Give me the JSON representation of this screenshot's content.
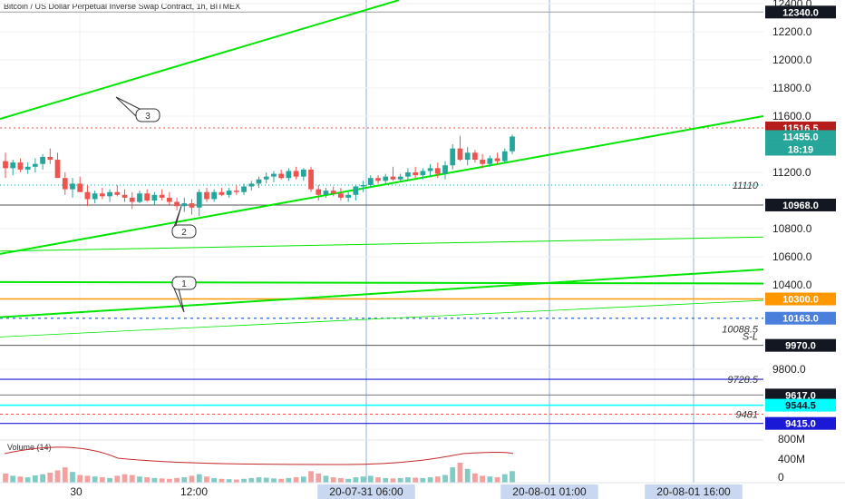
{
  "header": {
    "symbol_title": "Bitcoin / US Dollar Perpetual Inverse Swap Contract, 1h, BITMEX"
  },
  "volume_panel": {
    "title": "Volume (14)"
  },
  "colors": {
    "up": "#26a69a",
    "down": "#ef5350",
    "trendline": "#00e600",
    "orange": "#ff9800",
    "blue": "#1a1ad6",
    "cyan": "#00ffff",
    "price_tag": "#b71c1c",
    "last_tag": "#26a69a",
    "blue_tag": "#4a7fdc"
  },
  "chart_data": {
    "type": "candlestick",
    "y_axis": {
      "ticks": [
        "12400.0",
        "12200.0",
        "12000.0",
        "11800.0",
        "11600.0",
        "11200.0",
        "10800.0",
        "10600.0",
        "10400.0",
        "9800.0",
        "0",
        "400M",
        "800M"
      ],
      "min": 9300,
      "max": 12420
    },
    "x_axis": {
      "ticks": [
        "30",
        "12:00",
        "20-07-31  06:00",
        "20-08-01  01:00",
        "20-08-01  16:00"
      ]
    },
    "price_labels": [
      {
        "label": "12340.0",
        "price": 12340,
        "style": "dark"
      },
      {
        "label": "11516.5",
        "price": 11516.5,
        "style": "red"
      },
      {
        "label": "11455.0",
        "price": 11455,
        "style": "teal"
      },
      {
        "label": "18:19",
        "price": 11400,
        "style": "teal"
      },
      {
        "label": "11110",
        "price": 11110,
        "style": "plain"
      },
      {
        "label": "10968.0",
        "price": 10968,
        "style": "dark"
      },
      {
        "label": "10300.0",
        "price": 10300,
        "style": "orange"
      },
      {
        "label": "10163.0",
        "price": 10163,
        "style": "blue"
      },
      {
        "label": "10088.5",
        "price": 10088.5,
        "style": "plain"
      },
      {
        "label": "S-L",
        "price": 10050,
        "style": "plain"
      },
      {
        "label": "9970.0",
        "price": 9970,
        "style": "dark"
      },
      {
        "label": "9728.5",
        "price": 9728.5,
        "style": "plain"
      },
      {
        "label": "9617.0",
        "price": 9617,
        "style": "dark"
      },
      {
        "label": "9544.5",
        "price": 9544.5,
        "style": "cyan"
      },
      {
        "label": "9481",
        "price": 9481,
        "style": "plain"
      },
      {
        "label": "9415.0",
        "price": 9415,
        "style": "blue_dark"
      }
    ],
    "callouts": [
      "3",
      "2",
      "1"
    ],
    "candles": [
      {
        "o": 11280,
        "h": 11340,
        "l": 11160,
        "c": 11230
      },
      {
        "o": 11230,
        "h": 11290,
        "l": 11180,
        "c": 11270
      },
      {
        "o": 11270,
        "h": 11300,
        "l": 11200,
        "c": 11220
      },
      {
        "o": 11220,
        "h": 11270,
        "l": 11190,
        "c": 11240
      },
      {
        "o": 11240,
        "h": 11300,
        "l": 11200,
        "c": 11260
      },
      {
        "o": 11260,
        "h": 11330,
        "l": 11220,
        "c": 11310
      },
      {
        "o": 11310,
        "h": 11370,
        "l": 11260,
        "c": 11290
      },
      {
        "o": 11290,
        "h": 11340,
        "l": 11180,
        "c": 11160
      },
      {
        "o": 11160,
        "h": 11200,
        "l": 11040,
        "c": 11080
      },
      {
        "o": 11080,
        "h": 11160,
        "l": 11020,
        "c": 11120
      },
      {
        "o": 11120,
        "h": 11170,
        "l": 11060,
        "c": 11060
      },
      {
        "o": 11060,
        "h": 11110,
        "l": 10960,
        "c": 11010
      },
      {
        "o": 11010,
        "h": 11070,
        "l": 10980,
        "c": 11050
      },
      {
        "o": 11050,
        "h": 11090,
        "l": 11010,
        "c": 11030
      },
      {
        "o": 11030,
        "h": 11080,
        "l": 10990,
        "c": 11060
      },
      {
        "o": 11060,
        "h": 11110,
        "l": 11030,
        "c": 11040
      },
      {
        "o": 11040,
        "h": 11080,
        "l": 10990,
        "c": 11020
      },
      {
        "o": 11020,
        "h": 11060,
        "l": 10940,
        "c": 10990
      },
      {
        "o": 10990,
        "h": 11070,
        "l": 10980,
        "c": 11050
      },
      {
        "o": 11050,
        "h": 11080,
        "l": 10990,
        "c": 11000
      },
      {
        "o": 11000,
        "h": 11060,
        "l": 10970,
        "c": 11040
      },
      {
        "o": 11040,
        "h": 11080,
        "l": 11000,
        "c": 11020
      },
      {
        "o": 11020,
        "h": 11060,
        "l": 10970,
        "c": 10990
      },
      {
        "o": 10990,
        "h": 11020,
        "l": 10930,
        "c": 10960
      },
      {
        "o": 10960,
        "h": 11020,
        "l": 10920,
        "c": 10980
      },
      {
        "o": 10980,
        "h": 11010,
        "l": 10900,
        "c": 10950
      },
      {
        "o": 10950,
        "h": 11080,
        "l": 10890,
        "c": 11060
      },
      {
        "o": 11060,
        "h": 11090,
        "l": 10990,
        "c": 11010
      },
      {
        "o": 11010,
        "h": 11080,
        "l": 10990,
        "c": 11060
      },
      {
        "o": 11060,
        "h": 11090,
        "l": 11030,
        "c": 11040
      },
      {
        "o": 11040,
        "h": 11090,
        "l": 11020,
        "c": 11070
      },
      {
        "o": 11070,
        "h": 11110,
        "l": 11040,
        "c": 11060
      },
      {
        "o": 11060,
        "h": 11120,
        "l": 11040,
        "c": 11100
      },
      {
        "o": 11100,
        "h": 11140,
        "l": 11070,
        "c": 11120
      },
      {
        "o": 11120,
        "h": 11170,
        "l": 11090,
        "c": 11150
      },
      {
        "o": 11150,
        "h": 11200,
        "l": 11120,
        "c": 11170
      },
      {
        "o": 11170,
        "h": 11210,
        "l": 11130,
        "c": 11190
      },
      {
        "o": 11190,
        "h": 11220,
        "l": 11150,
        "c": 11160
      },
      {
        "o": 11160,
        "h": 11230,
        "l": 11140,
        "c": 11210
      },
      {
        "o": 11210,
        "h": 11240,
        "l": 11150,
        "c": 11170
      },
      {
        "o": 11170,
        "h": 11230,
        "l": 11140,
        "c": 11220
      },
      {
        "o": 11220,
        "h": 11240,
        "l": 11060,
        "c": 11080
      },
      {
        "o": 11080,
        "h": 11110,
        "l": 11000,
        "c": 11040
      },
      {
        "o": 11040,
        "h": 11090,
        "l": 11020,
        "c": 11070
      },
      {
        "o": 11070,
        "h": 11100,
        "l": 11030,
        "c": 11050
      },
      {
        "o": 11050,
        "h": 11090,
        "l": 11000,
        "c": 11020
      },
      {
        "o": 11020,
        "h": 11060,
        "l": 10990,
        "c": 11040
      },
      {
        "o": 11040,
        "h": 11110,
        "l": 11000,
        "c": 11100
      },
      {
        "o": 11100,
        "h": 11140,
        "l": 11060,
        "c": 11110
      },
      {
        "o": 11110,
        "h": 11180,
        "l": 11090,
        "c": 11160
      },
      {
        "o": 11160,
        "h": 11180,
        "l": 11120,
        "c": 11140
      },
      {
        "o": 11140,
        "h": 11190,
        "l": 11120,
        "c": 11170
      },
      {
        "o": 11170,
        "h": 11240,
        "l": 11140,
        "c": 11150
      },
      {
        "o": 11150,
        "h": 11190,
        "l": 11130,
        "c": 11170
      },
      {
        "o": 11170,
        "h": 11230,
        "l": 11140,
        "c": 11200
      },
      {
        "o": 11200,
        "h": 11240,
        "l": 11160,
        "c": 11180
      },
      {
        "o": 11180,
        "h": 11230,
        "l": 11150,
        "c": 11210
      },
      {
        "o": 11210,
        "h": 11260,
        "l": 11170,
        "c": 11230
      },
      {
        "o": 11230,
        "h": 11270,
        "l": 11160,
        "c": 11190
      },
      {
        "o": 11190,
        "h": 11280,
        "l": 11150,
        "c": 11250
      },
      {
        "o": 11250,
        "h": 11400,
        "l": 11220,
        "c": 11370
      },
      {
        "o": 11370,
        "h": 11460,
        "l": 11280,
        "c": 11290
      },
      {
        "o": 11290,
        "h": 11380,
        "l": 11250,
        "c": 11340
      },
      {
        "o": 11340,
        "h": 11360,
        "l": 11270,
        "c": 11290
      },
      {
        "o": 11290,
        "h": 11330,
        "l": 11230,
        "c": 11260
      },
      {
        "o": 11260,
        "h": 11320,
        "l": 11240,
        "c": 11300
      },
      {
        "o": 11300,
        "h": 11340,
        "l": 11260,
        "c": 11280
      },
      {
        "o": 11280,
        "h": 11370,
        "l": 11270,
        "c": 11350
      },
      {
        "o": 11350,
        "h": 11470,
        "l": 11330,
        "c": 11455
      }
    ],
    "volume": [
      120,
      90,
      80,
      70,
      95,
      110,
      130,
      160,
      200,
      140,
      100,
      90,
      80,
      70,
      60,
      90,
      110,
      100,
      80,
      70,
      60,
      55,
      50,
      60,
      70,
      90,
      110,
      80,
      60,
      50,
      45,
      40,
      50,
      60,
      70,
      65,
      55,
      50,
      60,
      70,
      80,
      150,
      120,
      90,
      70,
      60,
      50,
      70,
      80,
      90,
      70,
      60,
      55,
      60,
      70,
      65,
      60,
      70,
      80,
      100,
      200,
      260,
      180,
      120,
      90,
      80,
      70,
      110,
      150
    ],
    "volume_max": 900000000
  }
}
